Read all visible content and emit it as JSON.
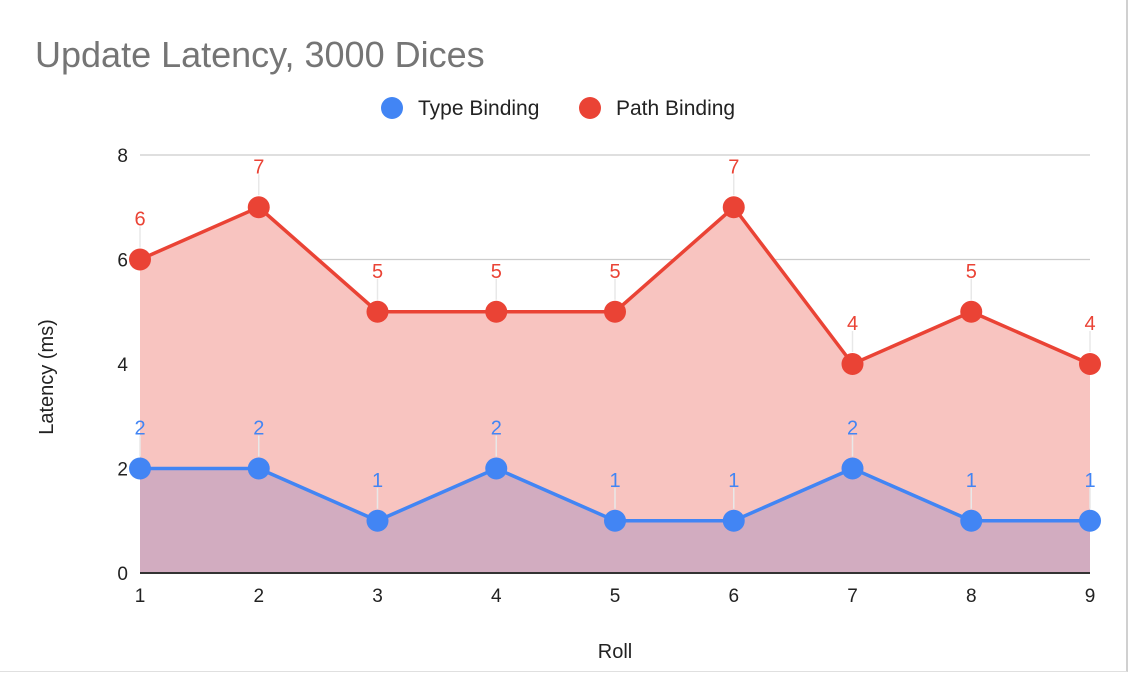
{
  "colors": {
    "background": "#ffffff",
    "type_binding": "#4285f4",
    "path_binding": "#ea4335",
    "path_fill": "#f8c4c0",
    "overlap_fill": "#d2acc0",
    "gridline": "#cccccc",
    "axis_line": "#333333",
    "title": "#757575"
  },
  "chart_data": {
    "type": "area",
    "title": "Update Latency, 3000 Dices",
    "xlabel": "Roll",
    "ylabel": "Latency (ms)",
    "x": [
      1,
      2,
      3,
      4,
      5,
      6,
      7,
      8,
      9
    ],
    "ylim": [
      0,
      8
    ],
    "yticks": [
      0,
      2,
      4,
      6,
      8
    ],
    "grid": true,
    "legend_position": "top",
    "series": [
      {
        "name": "Type Binding",
        "color": "#4285f4",
        "values": [
          2,
          2,
          1,
          2,
          1,
          1,
          2,
          1,
          1
        ]
      },
      {
        "name": "Path Binding",
        "color": "#ea4335",
        "values": [
          6,
          7,
          5,
          5,
          5,
          7,
          4,
          5,
          4
        ]
      }
    ]
  }
}
